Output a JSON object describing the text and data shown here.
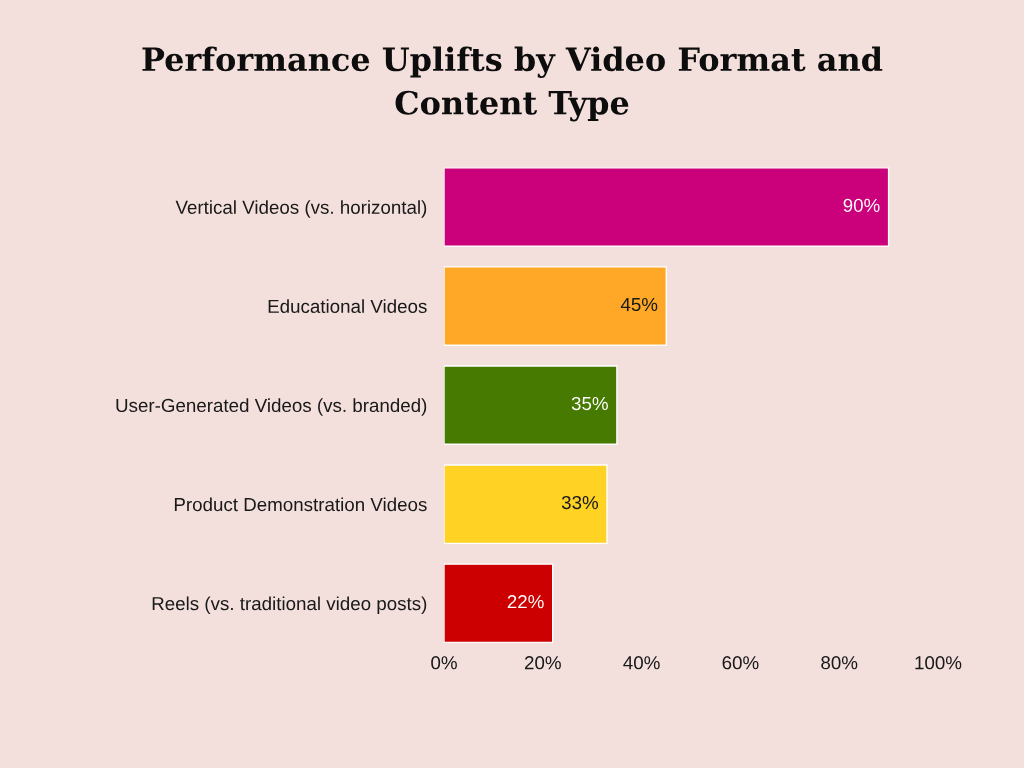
{
  "chart_data": {
    "type": "bar",
    "orientation": "horizontal",
    "title": "Performance Uplifts by Video Format and\nContent Type",
    "categories": [
      "Vertical Videos (vs. horizontal)",
      "Educational Videos",
      "User-Generated Videos (vs. branded)",
      "Product Demonstration Videos",
      "Reels (vs. traditional video posts)"
    ],
    "values": [
      90,
      45,
      35,
      33,
      22
    ],
    "colors": [
      "#cb007b",
      "#ffa726",
      "#467a00",
      "#ffd223",
      "#cc0000"
    ],
    "value_labels": [
      "90%",
      "45%",
      "35%",
      "33%",
      "22%"
    ],
    "xlim": [
      0,
      100
    ],
    "xticks": [
      {
        "value": 0,
        "label": "0%"
      },
      {
        "value": 20,
        "label": "20%"
      },
      {
        "value": 40,
        "label": "40%"
      },
      {
        "value": 60,
        "label": "60%"
      },
      {
        "value": 80,
        "label": "80%"
      },
      {
        "value": 100,
        "label": "100%"
      }
    ],
    "grid": false
  }
}
